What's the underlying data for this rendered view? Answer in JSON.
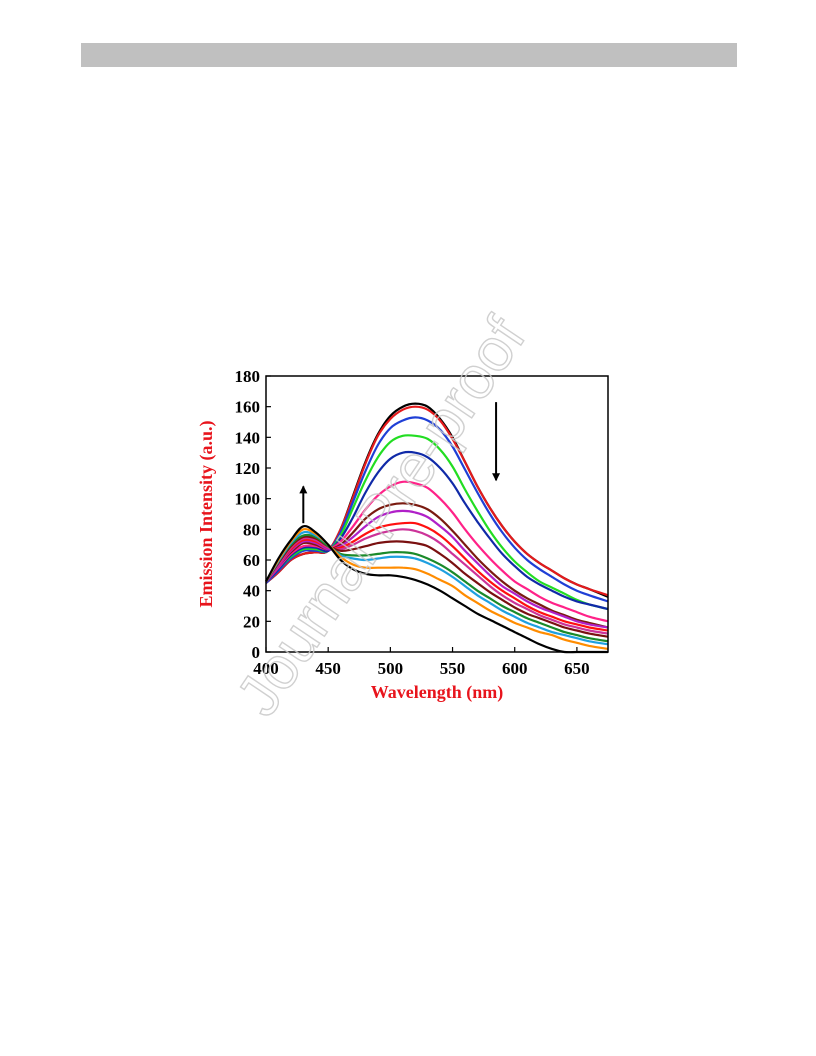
{
  "header": {
    "bar_color": "#c0c0c0"
  },
  "watermark": {
    "text": "Journal Pre-proof"
  },
  "chart_data": {
    "type": "line",
    "xlabel": "Wavelength (nm)",
    "ylabel": "Emission Intensity (a.u.)",
    "xlim": [
      400,
      675
    ],
    "ylim": [
      0,
      180
    ],
    "xticks": [
      400,
      450,
      500,
      550,
      600,
      650
    ],
    "yticks": [
      0,
      20,
      40,
      60,
      80,
      100,
      120,
      140,
      160,
      180
    ],
    "axis_title_color": "#e8141c",
    "grid": false,
    "legend": "none",
    "annotations": [
      {
        "type": "arrow",
        "direction": "up",
        "x": 430,
        "y_from": 84,
        "y_to": 108
      },
      {
        "type": "arrow",
        "direction": "down",
        "x": 585,
        "y_from": 163,
        "y_to": 112
      }
    ],
    "x": [
      400,
      410,
      420,
      430,
      440,
      450,
      460,
      470,
      480,
      490,
      500,
      510,
      520,
      530,
      540,
      550,
      560,
      570,
      580,
      590,
      600,
      610,
      620,
      630,
      640,
      650,
      660,
      675
    ],
    "series": [
      {
        "color": "#000000",
        "values": [
          45,
          52,
          60,
          64,
          65,
          66,
          80,
          102,
          124,
          142,
          154,
          160,
          162,
          160,
          152,
          140,
          124,
          108,
          94,
          82,
          72,
          64,
          58,
          53,
          48,
          44,
          41,
          36
        ]
      },
      {
        "color": "#e41a1c",
        "values": [
          45,
          52,
          60,
          64,
          65,
          66,
          80,
          101,
          123,
          141,
          152,
          158,
          160,
          158,
          151,
          139,
          124,
          108,
          94,
          82,
          72,
          64,
          58,
          53,
          48,
          44,
          41,
          37
        ]
      },
      {
        "color": "#1f3fd6",
        "values": [
          45,
          53,
          61,
          66,
          66,
          66,
          78,
          98,
          118,
          135,
          146,
          151,
          153,
          151,
          145,
          134,
          119,
          104,
          90,
          78,
          68,
          60,
          54,
          49,
          44,
          40,
          37,
          33
        ]
      },
      {
        "color": "#22dd22",
        "values": [
          46,
          54,
          62,
          67,
          67,
          66,
          76,
          94,
          112,
          127,
          137,
          141,
          141,
          139,
          132,
          121,
          106,
          92,
          79,
          68,
          59,
          52,
          46,
          42,
          38,
          34,
          31,
          28
        ]
      },
      {
        "color": "#102aa8",
        "values": [
          46,
          54,
          63,
          68,
          68,
          66,
          74,
          88,
          104,
          117,
          126,
          130,
          130,
          127,
          120,
          110,
          97,
          85,
          74,
          64,
          56,
          49,
          44,
          40,
          36,
          33,
          31,
          28
        ]
      },
      {
        "color": "#ff2288",
        "values": [
          46,
          55,
          64,
          69,
          69,
          67,
          72,
          82,
          93,
          102,
          108,
          111,
          110,
          107,
          100,
          91,
          80,
          70,
          61,
          53,
          46,
          41,
          36,
          32,
          29,
          26,
          23,
          20
        ]
      },
      {
        "color": "#7a1a10",
        "values": [
          46,
          56,
          65,
          71,
          70,
          67,
          70,
          78,
          87,
          93,
          96,
          97,
          96,
          93,
          87,
          79,
          70,
          61,
          53,
          46,
          40,
          35,
          31,
          27,
          24,
          21,
          19,
          16
        ]
      },
      {
        "color": "#b020c8",
        "values": [
          46,
          56,
          66,
          72,
          71,
          67,
          69,
          75,
          82,
          88,
          91,
          92,
          91,
          88,
          82,
          75,
          66,
          58,
          50,
          43,
          38,
          33,
          29,
          26,
          23,
          20,
          18,
          16
        ]
      },
      {
        "color": "#ff1010",
        "values": [
          46,
          57,
          67,
          73,
          72,
          68,
          68,
          72,
          77,
          81,
          83,
          84,
          84,
          81,
          76,
          69,
          61,
          53,
          46,
          40,
          35,
          30,
          26,
          23,
          20,
          18,
          16,
          14
        ]
      },
      {
        "color": "#cc3399",
        "values": [
          46,
          57,
          68,
          74,
          73,
          68,
          67,
          70,
          74,
          77,
          79,
          80,
          79,
          76,
          71,
          64,
          57,
          50,
          43,
          37,
          32,
          28,
          24,
          21,
          18,
          16,
          14,
          12
        ]
      },
      {
        "color": "#7a1010",
        "values": [
          46,
          58,
          69,
          75,
          74,
          69,
          66,
          67,
          69,
          71,
          72,
          72,
          71,
          69,
          64,
          58,
          51,
          45,
          39,
          34,
          29,
          25,
          22,
          19,
          16,
          14,
          12,
          10
        ]
      },
      {
        "color": "#1a8a2a",
        "values": [
          46,
          59,
          70,
          76,
          75,
          69,
          64,
          63,
          63,
          64,
          65,
          65,
          64,
          61,
          57,
          52,
          46,
          40,
          35,
          30,
          26,
          22,
          19,
          16,
          13,
          11,
          9,
          7
        ]
      },
      {
        "color": "#1fa0e0",
        "values": [
          46,
          59,
          71,
          78,
          76,
          70,
          63,
          61,
          60,
          61,
          62,
          62,
          61,
          58,
          54,
          49,
          43,
          37,
          32,
          27,
          23,
          19,
          16,
          13,
          11,
          9,
          7,
          5
        ]
      },
      {
        "color": "#ff8c00",
        "values": [
          46,
          60,
          72,
          80,
          77,
          70,
          62,
          57,
          55,
          55,
          55,
          55,
          54,
          51,
          47,
          43,
          37,
          32,
          27,
          23,
          19,
          16,
          13,
          11,
          8,
          6,
          4,
          2
        ]
      },
      {
        "color": "#000000",
        "values": [
          46,
          61,
          73,
          82,
          78,
          70,
          60,
          54,
          51,
          50,
          50,
          49,
          47,
          44,
          40,
          35,
          30,
          25,
          21,
          17,
          13,
          9,
          5,
          2,
          0,
          0,
          0,
          0
        ]
      }
    ]
  }
}
